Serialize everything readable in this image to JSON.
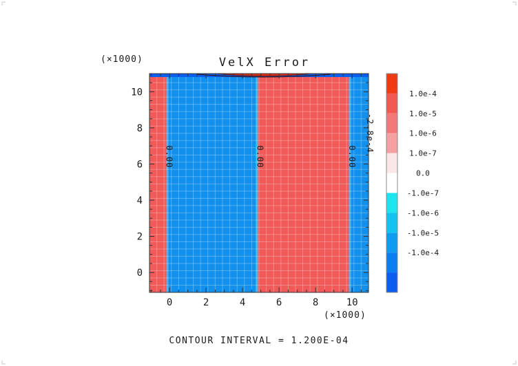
{
  "chart_data": {
    "type": "heatmap",
    "title": "VelX Error",
    "x_multiplier": "(×1000)",
    "y_multiplier": "(×1000)",
    "xlim": [
      -1.1,
      10.9
    ],
    "ylim": [
      -1.1,
      11.0
    ],
    "x_ticks": [
      "0",
      "2",
      "4",
      "6",
      "8",
      "10"
    ],
    "x_tick_values": [
      0,
      2,
      4,
      6,
      8,
      10
    ],
    "y_ticks": [
      "0",
      "2",
      "4",
      "6",
      "8",
      "10"
    ],
    "y_tick_values": [
      0,
      2,
      4,
      6,
      8,
      10
    ],
    "grid": true,
    "footer": "CONTOUR INTERVAL = 1.200E-04",
    "colorbar": {
      "labels": [
        "1.0e-4",
        "1.0e-5",
        "1.0e-6",
        "1.0e-7",
        "0.0",
        "-1.0e-7",
        "-1.0e-6",
        "-1.0e-5",
        "-1.0e-4"
      ],
      "colors": [
        "#f03a12",
        "#f05a52",
        "#f37878",
        "#f6a1a1",
        "#fbe7e7",
        "#ffffff",
        "#1ee4f0",
        "#12c2f0",
        "#0e9cf0",
        "#0a80f0",
        "#0a5ef0"
      ]
    },
    "regions": [
      {
        "x0": -1.1,
        "x1": -0.1,
        "color": "#f05a58"
      },
      {
        "x0": -0.1,
        "x1": 4.8,
        "color": "#1190ee"
      },
      {
        "x0": 4.8,
        "x1": 9.9,
        "color": "#f05a58"
      },
      {
        "x0": 9.9,
        "x1": 10.9,
        "color": "#1190ee"
      }
    ],
    "contour_labels": [
      {
        "x": -0.05,
        "y": 6.4,
        "text": "0.00"
      },
      {
        "x": 4.93,
        "y": 6.4,
        "text": "0.00"
      },
      {
        "x": 9.98,
        "y": 6.4,
        "text": "0.00"
      },
      {
        "x": 10.95,
        "y": 7.7,
        "text": "-2.8e-4"
      }
    ]
  }
}
